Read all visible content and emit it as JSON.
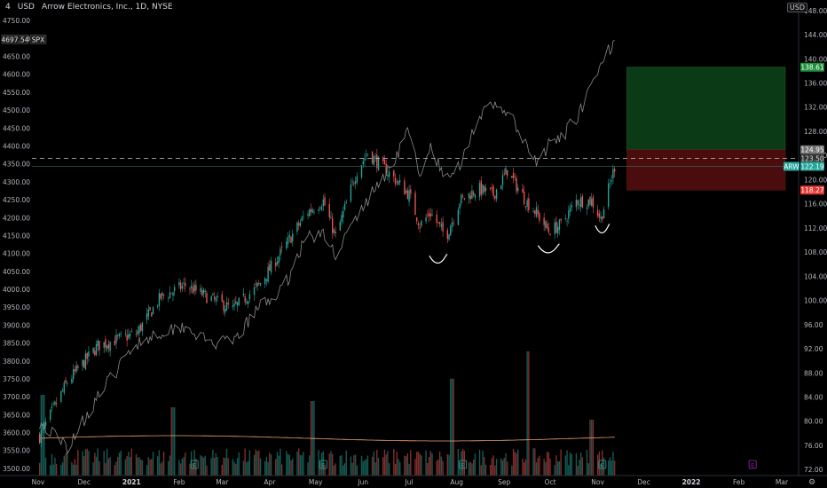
{
  "header": {
    "left_currency": "USD",
    "scale_prefix": "4",
    "symbol_title": "Arrow Electronics, Inc., 1D, NYSE",
    "right_currency": "USD"
  },
  "colors": {
    "background": "#000000",
    "up": "#26a69a",
    "down": "#ef5350",
    "spx_line": "#8a8a8a",
    "ma_line": "#f0a070",
    "target_zone": "#0a3a16",
    "stop_zone": "#4a0c0c",
    "annotation": "#ffffff"
  },
  "chart_data": {
    "type": "candlestick",
    "symbol": "ARW",
    "comparison_symbol": "SPX",
    "right_axis": {
      "ticks": [
        "148.00",
        "144.00",
        "140.00",
        "136.00",
        "132.00",
        "128.00",
        "124.00",
        "120.00",
        "116.00",
        "112.00",
        "108.00",
        "104.00",
        "100.00",
        "96.00",
        "92.00",
        "88.00",
        "84.00",
        "80.00",
        "76.00",
        "72.00"
      ],
      "range": [
        71,
        149
      ]
    },
    "left_axis": {
      "ticks": [
        "4750.00",
        "4700.00",
        "4650.00",
        "4600.00",
        "4550.00",
        "4500.00",
        "4450.00",
        "4400.00",
        "4350.00",
        "4300.00",
        "4250.00",
        "4200.00",
        "4150.00",
        "4100.00",
        "4050.00",
        "4000.00",
        "3950.00",
        "3900.00",
        "3850.00",
        "3800.00",
        "3750.00",
        "3700.00",
        "3650.00",
        "3600.00",
        "3550.00",
        "3500.00"
      ],
      "range": [
        3480,
        4795
      ]
    },
    "x_axis": {
      "ticks": [
        "Nov",
        "Dec",
        "2021",
        "Feb",
        "Mar",
        "Apr",
        "May",
        "Jun",
        "Jul",
        "Aug",
        "Sep",
        "Oct",
        "Nov",
        "Dec",
        "2022",
        "Feb",
        "Mar"
      ]
    },
    "price_labels": {
      "target": "138.61",
      "entry_high": "124.95",
      "dashed": "123.50",
      "last_symbol": "ARW",
      "last": "122.19",
      "stop": "118.27",
      "spx_value": "4697.54",
      "spx_symbol": "SPX"
    },
    "levels": {
      "target": 138.61,
      "entry_high": 124.95,
      "dashed": 123.5,
      "last": 122.19,
      "stop": 118.27
    },
    "arw_anchors": [
      [
        "2020-11-02",
        77.5
      ],
      [
        "2020-11-20",
        86.5
      ],
      [
        "2020-12-10",
        92.5
      ],
      [
        "2021-01-04",
        94.5
      ],
      [
        "2021-01-20",
        100.5
      ],
      [
        "2021-02-05",
        102.5
      ],
      [
        "2021-02-20",
        100.5
      ],
      [
        "2021-03-08",
        98.5
      ],
      [
        "2021-03-25",
        102.5
      ],
      [
        "2021-04-10",
        108.5
      ],
      [
        "2021-04-25",
        114.5
      ],
      [
        "2021-05-06",
        116.5
      ],
      [
        "2021-05-14",
        110.5
      ],
      [
        "2021-05-28",
        121.5
      ],
      [
        "2021-06-04",
        124.5
      ],
      [
        "2021-06-20",
        120.5
      ],
      [
        "2021-07-01",
        117.5
      ],
      [
        "2021-07-08",
        112.5
      ],
      [
        "2021-07-15",
        114.5
      ],
      [
        "2021-07-25",
        110.5
      ],
      [
        "2021-08-03",
        116.5
      ],
      [
        "2021-08-15",
        118.5
      ],
      [
        "2021-08-25",
        117.5
      ],
      [
        "2021-09-03",
        121.5
      ],
      [
        "2021-09-15",
        116.5
      ],
      [
        "2021-09-22",
        114.5
      ],
      [
        "2021-09-30",
        111.5
      ],
      [
        "2021-10-08",
        112.5
      ],
      [
        "2021-10-18",
        116.5
      ],
      [
        "2021-10-28",
        116.5
      ],
      [
        "2021-11-03",
        113.5
      ],
      [
        "2021-11-12",
        122.19
      ]
    ],
    "spx_anchors": [
      [
        "2020-11-02",
        3630
      ],
      [
        "2020-11-20",
        3560
      ],
      [
        "2020-12-10",
        3700
      ],
      [
        "2021-01-04",
        3850
      ],
      [
        "2021-01-20",
        3880
      ],
      [
        "2021-02-05",
        3900
      ],
      [
        "2021-02-20",
        3850
      ],
      [
        "2021-03-08",
        3850
      ],
      [
        "2021-03-25",
        3950
      ],
      [
        "2021-04-10",
        4000
      ],
      [
        "2021-04-25",
        4150
      ],
      [
        "2021-05-06",
        4150
      ],
      [
        "2021-05-14",
        4100
      ],
      [
        "2021-05-28",
        4200
      ],
      [
        "2021-06-04",
        4250
      ],
      [
        "2021-06-20",
        4350
      ],
      [
        "2021-07-01",
        4450
      ],
      [
        "2021-07-08",
        4300
      ],
      [
        "2021-07-15",
        4400
      ],
      [
        "2021-07-25",
        4300
      ],
      [
        "2021-08-03",
        4350
      ],
      [
        "2021-08-15",
        4480
      ],
      [
        "2021-08-25",
        4510
      ],
      [
        "2021-09-03",
        4500
      ],
      [
        "2021-09-15",
        4400
      ],
      [
        "2021-09-22",
        4350
      ],
      [
        "2021-09-30",
        4400
      ],
      [
        "2021-10-08",
        4420
      ],
      [
        "2021-10-18",
        4480
      ],
      [
        "2021-10-28",
        4560
      ],
      [
        "2021-11-03",
        4620
      ],
      [
        "2021-11-12",
        4700
      ]
    ],
    "volume_spikes": [
      [
        "2020-11-04",
        0.65
      ],
      [
        "2021-01-28",
        0.55
      ],
      [
        "2021-04-29",
        0.6
      ],
      [
        "2021-07-29",
        0.78
      ],
      [
        "2021-09-17",
        1.0
      ],
      [
        "2021-10-28",
        0.45
      ]
    ],
    "grid": false,
    "legend": "none"
  }
}
